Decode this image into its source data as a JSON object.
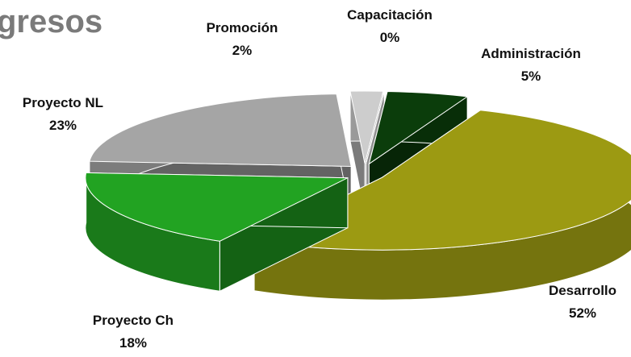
{
  "chart_data": {
    "type": "pie3d",
    "title": "gresos",
    "categories": [
      "Capacitación",
      "Administración",
      "Desarrollo",
      "Proyecto Ch",
      "Proyecto NL",
      "Promoción"
    ],
    "values": [
      0,
      5,
      52,
      18,
      23,
      2
    ],
    "value_labels": [
      "0%",
      "5%",
      "52%",
      "18%",
      "23%",
      "2%"
    ],
    "colors": [
      "#eeeeee",
      "#0b3d0b",
      "#9c9a12",
      "#22a322",
      "#a5a5a5",
      "#cdcdcd"
    ]
  }
}
